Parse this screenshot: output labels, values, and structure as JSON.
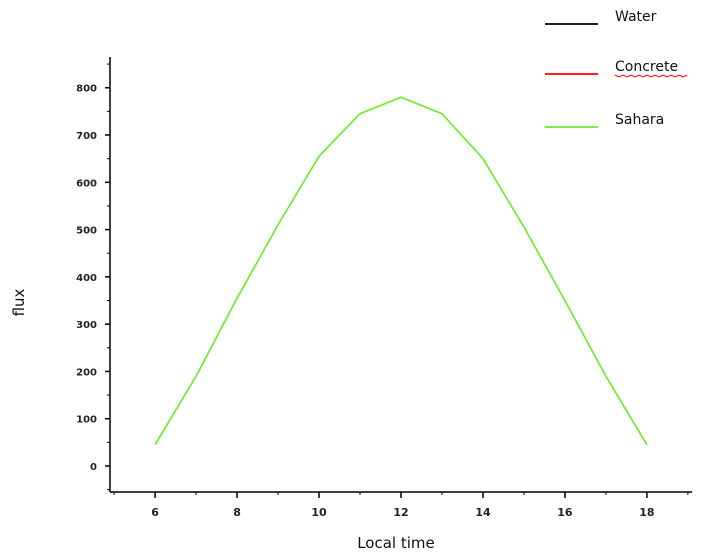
{
  "chart_data": {
    "type": "line",
    "title": "",
    "xlabel": "Local time",
    "ylabel": "flux",
    "xlim": [
      4.9,
      19.1
    ],
    "ylim": [
      -55,
      865
    ],
    "x_ticks": [
      6,
      8,
      10,
      12,
      14,
      16,
      18
    ],
    "y_ticks": [
      0,
      100,
      200,
      300,
      400,
      500,
      600,
      700,
      800
    ],
    "grid": false,
    "legend_position": "top-right",
    "legend": [
      {
        "name": "Water",
        "color": "#000000",
        "squiggle": false
      },
      {
        "name": "Concrete",
        "color": "#ff0000",
        "squiggle": true
      },
      {
        "name": "Sahara",
        "color": "#66ee22",
        "squiggle": false
      }
    ],
    "series": [
      {
        "name": "Sahara",
        "color": "#66ee22",
        "x": [
          6,
          7,
          8,
          9,
          10,
          11,
          12,
          13,
          14,
          15,
          16,
          17,
          18
        ],
        "y": [
          45,
          190,
          355,
          510,
          655,
          745,
          780,
          745,
          650,
          505,
          350,
          190,
          45
        ]
      }
    ]
  }
}
